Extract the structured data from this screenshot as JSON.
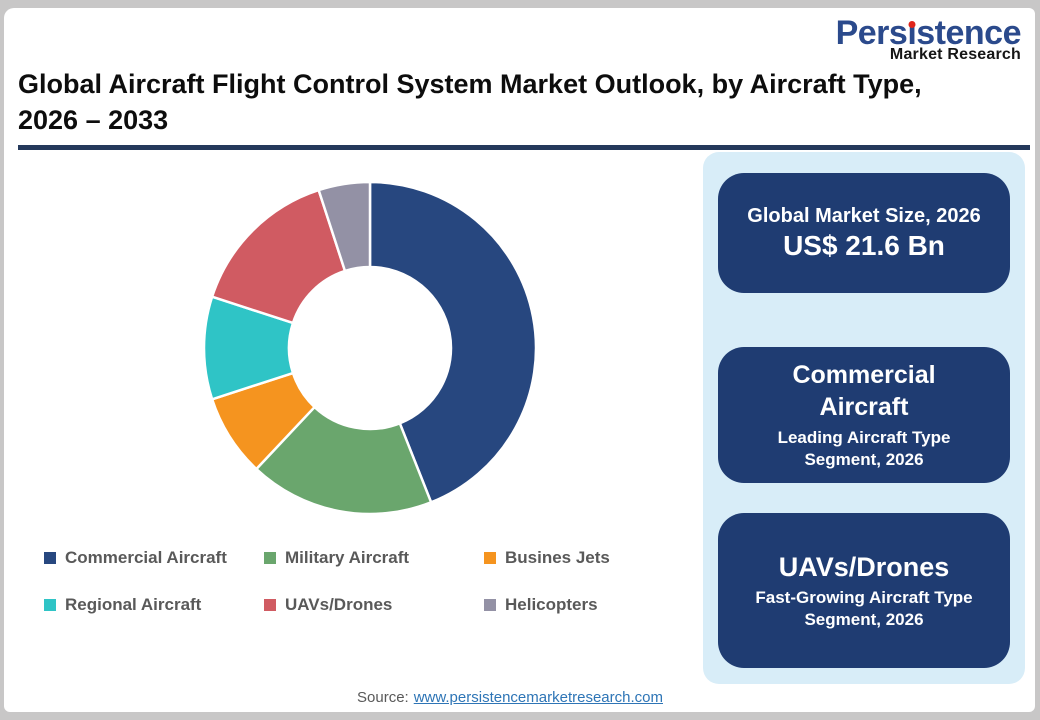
{
  "logo": {
    "brand_pre": "Pers",
    "brand_i": "ı",
    "brand_post": "stence",
    "subtitle": "Market Research",
    "brand_color": "#2b4a8c",
    "dot_color": "#e0251b"
  },
  "header": {
    "title_line1": "Global Aircraft Flight Control System Market Outlook, by Aircraft Type,",
    "title_line2": "2026 – 2033",
    "underline_color": "#24395b"
  },
  "chart_data": {
    "type": "pie",
    "subtype": "donut",
    "title": "Global Aircraft Flight Control System Market Outlook, by Aircraft Type, 2026 – 2033",
    "start_angle_deg": 0,
    "direction": "clockwise",
    "inner_radius_ratio": 0.49,
    "legend_position": "bottom",
    "segments": [
      {
        "label": "Commercial Aircraft",
        "value_pct": 44,
        "color": "#27477f"
      },
      {
        "label": "Military Aircraft",
        "value_pct": 18,
        "color": "#6aa66d"
      },
      {
        "label": "Busines Jets",
        "value_pct": 8,
        "color": "#f5941f"
      },
      {
        "label": "Regional Aircraft",
        "value_pct": 10,
        "color": "#2fc4c6"
      },
      {
        "label": "UAVs/Drones",
        "value_pct": 15,
        "color": "#d05b62"
      },
      {
        "label": "Helicopters",
        "value_pct": 5,
        "color": "#9391a5"
      }
    ]
  },
  "panel": {
    "bg_color": "#d8edf8",
    "card_color": "#1f3c72",
    "cards": [
      {
        "title": "Global Market Size, 2026",
        "value": "US$ 21.6 Bn"
      },
      {
        "title": "Commercial Aircraft",
        "subtitle": "Leading Aircraft Type Segment, 2026"
      },
      {
        "title": "UAVs/Drones",
        "subtitle": "Fast-Growing Aircraft Type Segment, 2026"
      }
    ]
  },
  "source": {
    "label": "Source:",
    "link": "www.persistencemarketresearch.com",
    "link_color": "#2e75b6"
  }
}
